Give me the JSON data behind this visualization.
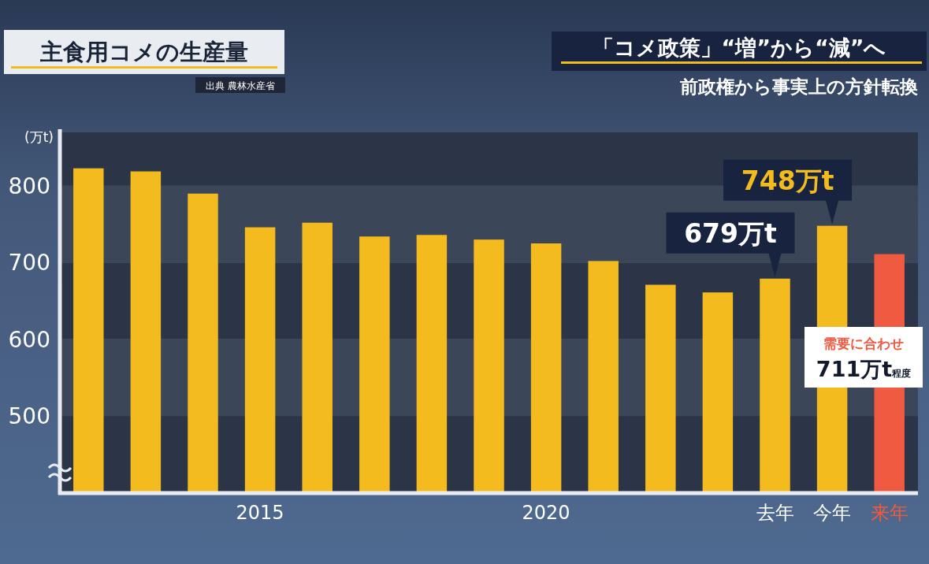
{
  "chart_data": {
    "type": "bar",
    "title": "主食用コメの生産量",
    "ylabel": "(万t)",
    "annotations": [
      "出典 農林水産省",
      "「コメ政策」“増”から“減”へ",
      "前政権から事実上の方針転換",
      {
        "text": "679万t",
        "x": "去年",
        "y": 679
      },
      {
        "text": "748万t",
        "x": "今年",
        "y": 748
      },
      "需要に合わせ 711万t程度"
    ],
    "categories": [
      null,
      null,
      null,
      "2015",
      null,
      null,
      null,
      null,
      "2020",
      null,
      null,
      null,
      "去年",
      "今年",
      "来年"
    ],
    "values": [
      823,
      819,
      790,
      746,
      752,
      734,
      736,
      730,
      725,
      702,
      671,
      661,
      679,
      748,
      711
    ],
    "colors": [
      "#f4bb1f",
      "#f4bb1f",
      "#f4bb1f",
      "#f4bb1f",
      "#f4bb1f",
      "#f4bb1f",
      "#f4bb1f",
      "#f4bb1f",
      "#f4bb1f",
      "#f4bb1f",
      "#f4bb1f",
      "#f4bb1f",
      "#f4bb1f",
      "#f4bb1f",
      "#ef5a40"
    ],
    "ylim": [
      400,
      870
    ],
    "yticks": [
      500,
      600,
      700,
      800
    ],
    "grid": "y"
  }
}
